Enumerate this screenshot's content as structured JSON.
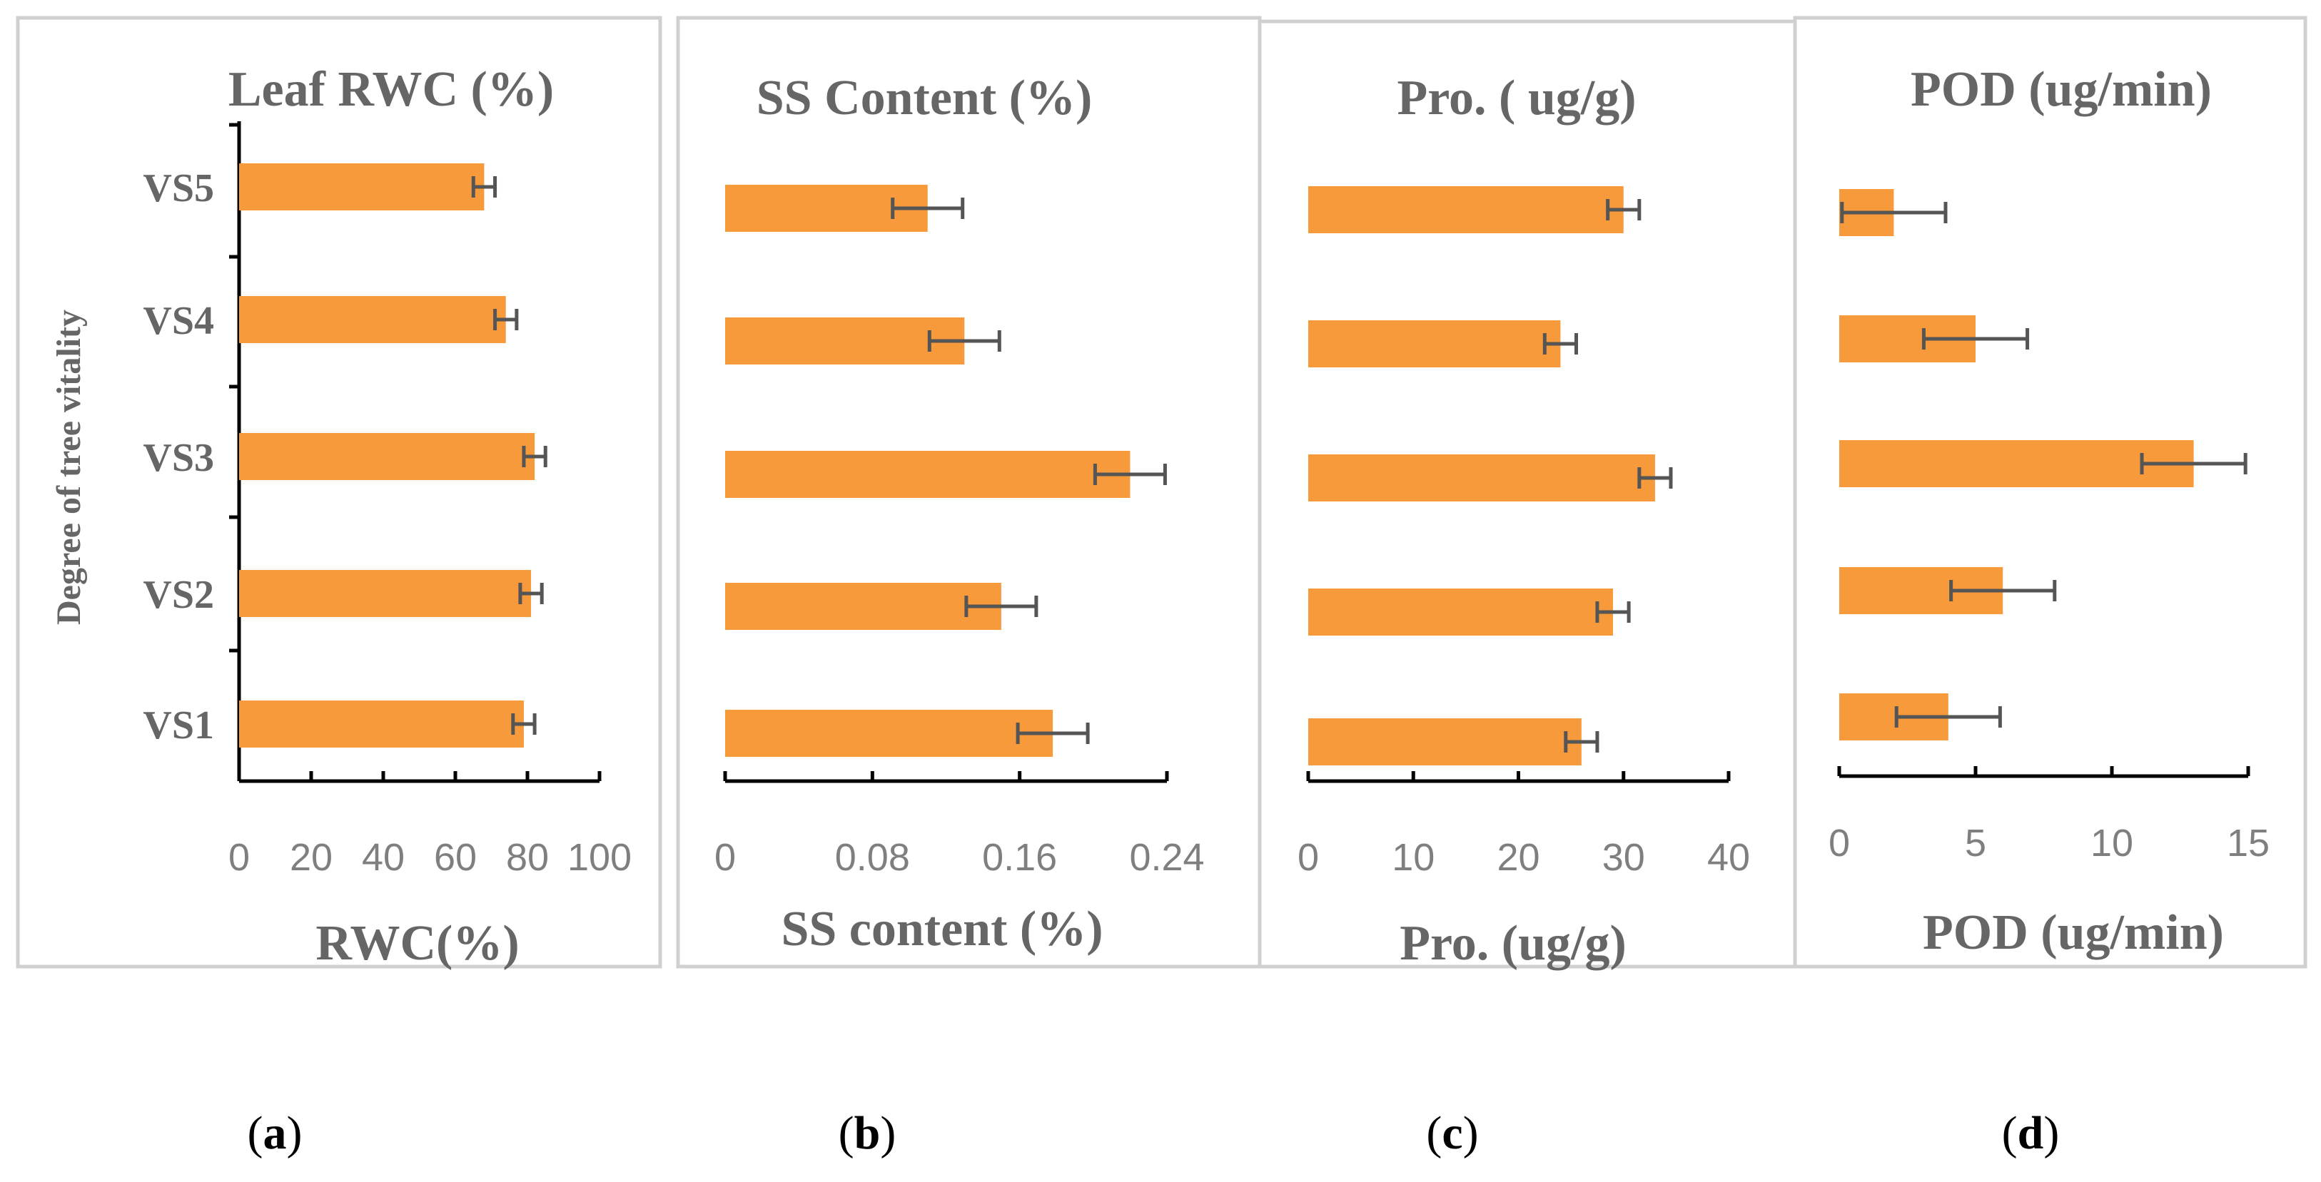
{
  "y_axis_label": "Degree of tree vitality",
  "colors": {
    "bar": "#f79a3c",
    "error_bar": "#555555",
    "frame": "#d0d0d0",
    "text": "#666666",
    "ticks": "#7f7f7f"
  },
  "chart_data": [
    {
      "type": "bar",
      "orientation": "horizontal",
      "panel": "a",
      "title": "Leaf RWC (%)",
      "xlabel": "RWC(%)",
      "ylabel": "Degree of tree vitality",
      "categories": [
        "VS1",
        "VS2",
        "VS3",
        "VS4",
        "VS5"
      ],
      "values": [
        79,
        81,
        82,
        74,
        68
      ],
      "errors": [
        3,
        3,
        3,
        3,
        3
      ],
      "xlim": [
        0,
        100
      ],
      "xticks": [
        0,
        20,
        40,
        60,
        80,
        100
      ],
      "tick_labels": [
        "0",
        "20",
        "40",
        "60",
        "80",
        "100"
      ],
      "grid": false
    },
    {
      "type": "bar",
      "orientation": "horizontal",
      "panel": "b",
      "title": "SS Content (%)",
      "xlabel": "SS content (%)",
      "categories": [
        "VS1",
        "VS2",
        "VS3",
        "VS4",
        "VS5"
      ],
      "values": [
        0.178,
        0.15,
        0.22,
        0.13,
        0.11
      ],
      "errors": [
        0.019,
        0.019,
        0.019,
        0.019,
        0.019
      ],
      "xlim": [
        0,
        0.24
      ],
      "xticks": [
        0,
        0.08,
        0.16,
        0.24
      ],
      "tick_labels": [
        "0",
        "0.08",
        "0.16",
        "0.24"
      ],
      "grid": false
    },
    {
      "type": "bar",
      "orientation": "horizontal",
      "panel": "c",
      "title": "Pro. ( ug/g)",
      "xlabel": "Pro. (ug/g)",
      "categories": [
        "VS1",
        "VS2",
        "VS3",
        "VS4",
        "VS5"
      ],
      "values": [
        26,
        29,
        33,
        24,
        30
      ],
      "errors": [
        1.5,
        1.5,
        1.5,
        1.5,
        1.5
      ],
      "xlim": [
        0,
        40
      ],
      "xticks": [
        0,
        10,
        20,
        30,
        40
      ],
      "tick_labels": [
        "0",
        "10",
        "20",
        "30",
        "40"
      ],
      "grid": false
    },
    {
      "type": "bar",
      "orientation": "horizontal",
      "panel": "d",
      "title": "POD (ug/min)",
      "xlabel": "POD (ug/min)",
      "categories": [
        "VS1",
        "VS2",
        "VS3",
        "VS4",
        "VS5"
      ],
      "values": [
        4,
        6,
        13,
        5,
        2
      ],
      "errors": [
        1.9,
        1.9,
        1.9,
        1.9,
        1.9
      ],
      "xlim": [
        0,
        15
      ],
      "xticks": [
        0,
        5,
        10,
        15
      ],
      "tick_labels": [
        "0",
        "5",
        "10",
        "15"
      ],
      "grid": false
    }
  ],
  "subfigure_labels": [
    {
      "open": "(",
      "letter": "a",
      "close": ")"
    },
    {
      "open": "(",
      "letter": "b",
      "close": ")"
    },
    {
      "open": "(",
      "letter": "c",
      "close": ")"
    },
    {
      "open": "(",
      "letter": "d",
      "close": ")"
    }
  ]
}
